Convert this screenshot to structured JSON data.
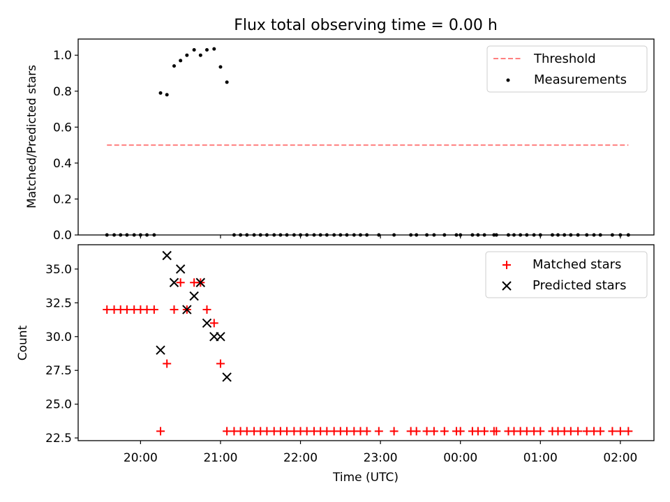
{
  "chart_data": [
    {
      "type": "scatter",
      "title": "Flux total observing time = 0.00 h",
      "xlabel": "",
      "ylabel": "Matched/Predicted stars",
      "xlim_hours": [
        19.22,
        26.42
      ],
      "ylim": [
        0,
        1.09
      ],
      "yticks": [
        0.0,
        0.2,
        0.4,
        0.6,
        0.8,
        1.0
      ],
      "ytick_labels": [
        "0.0",
        "0.2",
        "0.4",
        "0.6",
        "0.8",
        "1.0"
      ],
      "legend_position": "upper right",
      "legend": [
        {
          "label": "Threshold",
          "style": "dashed-line",
          "color": "#ff7f7f"
        },
        {
          "label": "Measurements",
          "style": "dot",
          "color": "#000000"
        }
      ],
      "threshold": {
        "name": "Threshold",
        "y": 0.5,
        "x_range_hours": [
          19.58,
          26.1
        ],
        "color": "#ff7f7f"
      },
      "series": [
        {
          "name": "Measurements",
          "color": "#000000",
          "x_hours": [
            19.58,
            19.67,
            19.75,
            19.83,
            19.92,
            20.0,
            20.08,
            20.17,
            20.25,
            20.33,
            20.42,
            20.5,
            20.58,
            20.67,
            20.75,
            20.83,
            20.92,
            21.0,
            21.08,
            21.17,
            21.25,
            21.33,
            21.42,
            21.5,
            21.58,
            21.67,
            21.75,
            21.83,
            21.92,
            22.0,
            22.08,
            22.17,
            22.25,
            22.33,
            22.42,
            22.5,
            22.58,
            22.67,
            22.75,
            22.83,
            22.98,
            23.17,
            23.38,
            23.45,
            23.58,
            23.67,
            23.8,
            23.95,
            24.0,
            24.15,
            24.22,
            24.3,
            24.42,
            24.45,
            24.6,
            24.67,
            24.75,
            24.83,
            24.92,
            25.0,
            25.15,
            25.22,
            25.3,
            25.38,
            25.47,
            25.58,
            25.67,
            25.75,
            25.9,
            26.0,
            26.1
          ],
          "y": [
            0,
            0,
            0,
            0,
            0,
            0,
            0,
            0,
            0.79,
            0.78,
            0.94,
            0.97,
            1.0,
            1.03,
            1.0,
            1.03,
            1.035,
            0.935,
            0.85,
            0,
            0,
            0,
            0,
            0,
            0,
            0,
            0,
            0,
            0,
            0,
            0,
            0,
            0,
            0,
            0,
            0,
            0,
            0,
            0,
            0,
            0,
            0,
            0,
            0,
            0,
            0,
            0,
            0,
            0,
            0,
            0,
            0,
            0,
            0,
            0,
            0,
            0,
            0,
            0,
            0,
            0,
            0,
            0,
            0,
            0,
            0,
            0,
            0,
            0,
            0,
            0
          ]
        }
      ]
    },
    {
      "type": "scatter",
      "title": "",
      "xlabel": "Time (UTC)",
      "ylabel": "Count",
      "xlim_hours": [
        19.22,
        26.42
      ],
      "xticks_hours": [
        20,
        21,
        22,
        23,
        24,
        25,
        26
      ],
      "xtick_labels": [
        "20:00",
        "21:00",
        "22:00",
        "23:00",
        "00:00",
        "01:00",
        "02:00"
      ],
      "ylim": [
        22.3,
        36.8
      ],
      "yticks": [
        22.5,
        25.0,
        27.5,
        30.0,
        32.5,
        35.0
      ],
      "ytick_labels": [
        "22.5",
        "25.0",
        "27.5",
        "30.0",
        "32.5",
        "35.0"
      ],
      "legend_position": "upper right",
      "legend": [
        {
          "label": "Matched stars",
          "style": "plus",
          "color": "#ff0000"
        },
        {
          "label": "Predicted stars",
          "style": "x",
          "color": "#000000"
        }
      ],
      "series": [
        {
          "name": "Matched stars",
          "color": "#ff0000",
          "x_hours": [
            19.58,
            19.67,
            19.75,
            19.83,
            19.92,
            20.0,
            20.08,
            20.17,
            20.25,
            20.33,
            20.42,
            20.5,
            20.58,
            20.67,
            20.75,
            20.83,
            20.92,
            21.0,
            21.08,
            21.17,
            21.25,
            21.33,
            21.42,
            21.5,
            21.58,
            21.67,
            21.75,
            21.83,
            21.92,
            22.0,
            22.08,
            22.17,
            22.25,
            22.33,
            22.42,
            22.5,
            22.58,
            22.67,
            22.75,
            22.83,
            22.98,
            23.17,
            23.38,
            23.45,
            23.58,
            23.67,
            23.8,
            23.95,
            24.0,
            24.15,
            24.22,
            24.3,
            24.42,
            24.45,
            24.6,
            24.67,
            24.75,
            24.83,
            24.92,
            25.0,
            25.15,
            25.22,
            25.3,
            25.38,
            25.47,
            25.58,
            25.67,
            25.75,
            25.9,
            26.0,
            26.1
          ],
          "y": [
            32,
            32,
            32,
            32,
            32,
            32,
            32,
            32,
            23,
            28,
            32,
            34,
            32,
            34,
            34,
            32,
            31,
            28,
            23,
            23,
            23,
            23,
            23,
            23,
            23,
            23,
            23,
            23,
            23,
            23,
            23,
            23,
            23,
            23,
            23,
            23,
            23,
            23,
            23,
            23,
            23,
            23,
            23,
            23,
            23,
            23,
            23,
            23,
            23,
            23,
            23,
            23,
            23,
            23,
            23,
            23,
            23,
            23,
            23,
            23,
            23,
            23,
            23,
            23,
            23,
            23,
            23,
            23,
            23,
            23,
            23
          ]
        },
        {
          "name": "Predicted stars",
          "color": "#000000",
          "x_hours": [
            20.25,
            20.33,
            20.42,
            20.5,
            20.58,
            20.67,
            20.75,
            20.83,
            20.92,
            21.0,
            21.08
          ],
          "y": [
            29,
            36,
            34,
            35,
            32,
            33,
            34,
            31,
            30,
            30,
            27
          ]
        }
      ]
    }
  ]
}
